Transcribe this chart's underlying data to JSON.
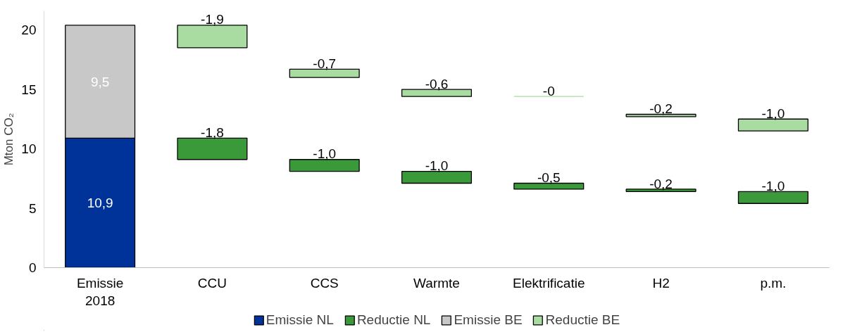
{
  "chart_data": {
    "type": "bar",
    "ylabel": "Mton CO₂",
    "categories": [
      "Emissie\n2018",
      "CCU",
      "CCS",
      "Warmte",
      "Elektrificatie",
      "H2",
      "p.m."
    ],
    "series": [
      {
        "name": "Emissie NL",
        "color": "#003399",
        "values": [
          10.9,
          null,
          null,
          null,
          null,
          null,
          null
        ],
        "base": [
          0,
          null,
          null,
          null,
          null,
          null,
          null
        ],
        "value_labels": [
          "10,9",
          null,
          null,
          null,
          null,
          null,
          null
        ]
      },
      {
        "name": "Reductie NL",
        "color": "#3a9a3a",
        "values": [
          null,
          -1.8,
          -1.0,
          -1.0,
          -0.5,
          -0.2,
          -1.0
        ],
        "base": [
          null,
          10.9,
          9.1,
          8.1,
          7.1,
          6.6,
          6.4
        ],
        "value_labels": [
          null,
          "-1,8",
          "-1,0",
          "-1,0",
          "-0,5",
          "-0,2",
          "-1,0"
        ]
      },
      {
        "name": "Emissie BE",
        "color": "#c8c8c8",
        "values": [
          9.5,
          null,
          null,
          null,
          null,
          null,
          null
        ],
        "base": [
          10.9,
          null,
          null,
          null,
          null,
          null,
          null
        ],
        "value_labels": [
          "9,5",
          null,
          null,
          null,
          null,
          null,
          null
        ]
      },
      {
        "name": "Reductie BE",
        "color": "#a8dca0",
        "values": [
          null,
          -1.9,
          -0.7,
          -0.6,
          0,
          -0.2,
          -1.0
        ],
        "base": [
          null,
          20.4,
          16.7,
          15.0,
          14.4,
          12.9,
          12.5
        ],
        "value_labels": [
          null,
          "-1,9",
          "-0,7",
          "-0,6",
          "-0",
          "-0,2",
          "-1,0"
        ]
      }
    ],
    "ylim": [
      0,
      21.6
    ],
    "yticks": [
      0,
      5,
      10,
      15,
      20
    ],
    "grid": false,
    "legend": "bottom"
  }
}
